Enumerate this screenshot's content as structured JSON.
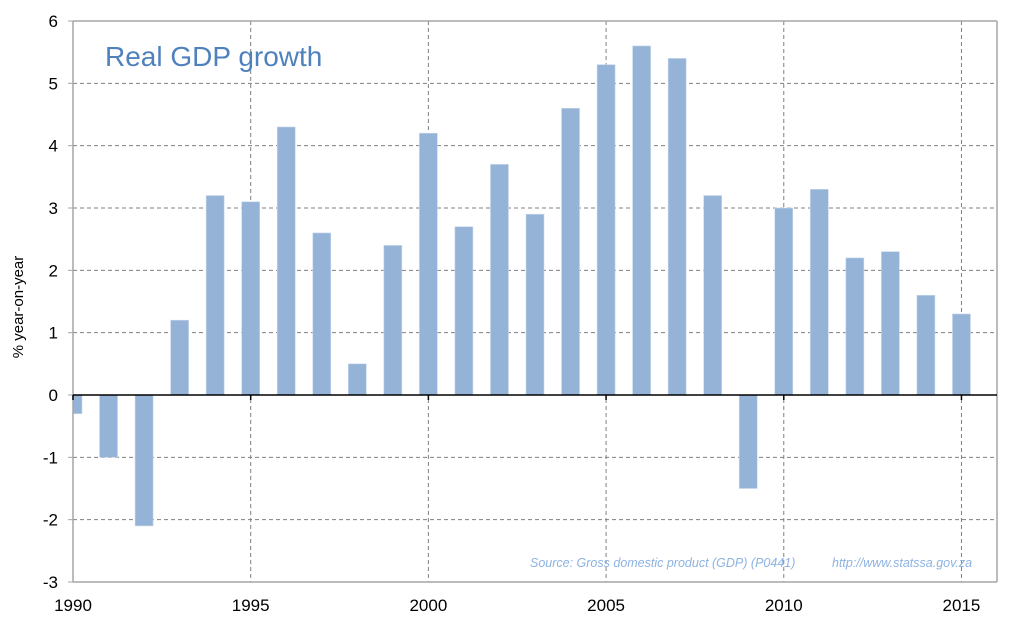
{
  "chart_data": {
    "type": "bar",
    "title": "Real GDP growth",
    "xlabel": "",
    "ylabel": "% year-on-year",
    "categories": [
      1990,
      1991,
      1992,
      1993,
      1994,
      1995,
      1996,
      1997,
      1998,
      1999,
      2000,
      2001,
      2002,
      2003,
      2004,
      2005,
      2006,
      2007,
      2008,
      2009,
      2010,
      2011,
      2012,
      2013,
      2014,
      2015
    ],
    "series": [
      {
        "name": "Real GDP growth",
        "color": "#95B3D7",
        "values": [
          -0.3,
          -1.0,
          -2.1,
          1.2,
          3.2,
          3.1,
          4.3,
          2.6,
          0.5,
          2.4,
          4.2,
          2.7,
          3.7,
          2.9,
          4.6,
          5.3,
          5.6,
          5.4,
          3.2,
          -1.5,
          3.0,
          3.3,
          2.2,
          2.3,
          1.6,
          1.3
        ]
      }
    ],
    "xlim": [
      1990,
      2016
    ],
    "ylim": [
      -3,
      6
    ],
    "yticks": [
      -3,
      -2,
      -1,
      0,
      1,
      2,
      3,
      4,
      5,
      6
    ],
    "xticks": [
      1990,
      1995,
      2000,
      2005,
      2010,
      2015
    ],
    "grid": true,
    "legend": "none",
    "annotations": [
      {
        "text": "Source: Gross domestic product (GDP) (P0441)",
        "position": "bottom-right"
      },
      {
        "text": "http://www.statssa.gov.za",
        "position": "bottom-right"
      }
    ],
    "colors": {
      "bar": "#95B3D7",
      "title": "#4F81BD",
      "source": "#8DB3E2",
      "grid": "#808080",
      "axis": "#000000",
      "frame": "#A6A6A6"
    }
  }
}
